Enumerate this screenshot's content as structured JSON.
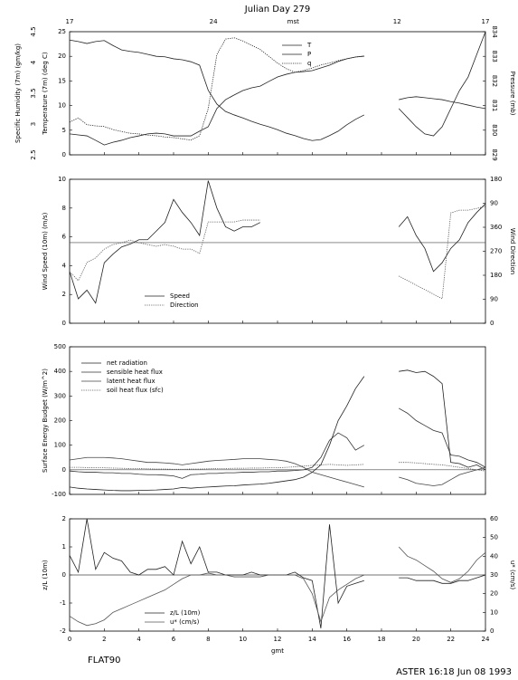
{
  "title": "Julian Day 279",
  "top_axis": {
    "labels": [
      "17",
      "24",
      "mst",
      "12",
      "17"
    ],
    "positions": [
      0,
      8.3,
      12.9,
      18.9,
      24
    ]
  },
  "footer_left": "FLAT90",
  "footer_right": "ASTER 16:18 Jun 08 1993",
  "chart_data": [
    {
      "type": "line",
      "ylabel": "Temperature (7m) (deg C)",
      "ylim": [
        0,
        25
      ],
      "yticks": [
        0,
        5,
        10,
        15,
        20,
        25
      ],
      "y3label": "Specific Humidity (7m) (gm/kg)",
      "y3lim": [
        2.5,
        4.5
      ],
      "y3ticks": [
        2.5,
        3,
        3.5,
        4,
        4.5
      ],
      "y2label": "Pressure (mb)",
      "y2lim": [
        829,
        834
      ],
      "y2ticks": [
        829,
        830,
        831,
        832,
        833,
        834
      ],
      "xlim": [
        0,
        24
      ],
      "xticks": [
        0,
        2,
        4,
        6,
        8,
        10,
        12,
        14,
        16,
        18,
        20,
        22,
        24
      ],
      "x": [
        0,
        0.5,
        1,
        1.5,
        2,
        2.5,
        3,
        3.5,
        4,
        4.5,
        5,
        5.5,
        6,
        6.5,
        7,
        7.5,
        8,
        8.5,
        9,
        9.5,
        10,
        10.5,
        11,
        11.5,
        12,
        12.5,
        13,
        13.5,
        14,
        14.5,
        15,
        15.5,
        16,
        16.5,
        17,
        17.5,
        18,
        18.5,
        19,
        19.5,
        20,
        20.5,
        21,
        21.5,
        22,
        22.5,
        23,
        23.5,
        24
      ],
      "series": [
        {
          "name": "T",
          "color": "#222222",
          "dash": "solid",
          "axis": "y",
          "values": [
            23.3,
            23.0,
            22.6,
            23.0,
            23.2,
            22.2,
            21.3,
            21.0,
            20.8,
            20.4,
            20.0,
            19.9,
            19.5,
            19.3,
            18.9,
            18.2,
            13.1,
            10.3,
            8.8,
            8.1,
            7.5,
            6.8,
            6.2,
            5.7,
            5.1,
            4.4,
            3.9,
            3.3,
            2.9,
            3.1,
            3.9,
            4.8,
            6.1,
            7.2,
            8.1,
            null,
            null,
            null,
            11.2,
            11.6,
            11.8,
            11.6,
            11.4,
            11.2,
            10.8,
            10.5,
            10.1,
            9.7,
            9.4
          ]
        },
        {
          "name": "P",
          "color": "#222222",
          "dash": "solid",
          "axis": "y2",
          "values": [
            829.85,
            829.81,
            829.77,
            829.59,
            829.4,
            829.51,
            829.59,
            829.7,
            829.77,
            829.85,
            829.88,
            829.85,
            829.77,
            829.77,
            829.77,
            829.96,
            830.14,
            830.88,
            831.24,
            831.43,
            831.61,
            831.72,
            831.79,
            831.98,
            832.16,
            832.27,
            832.35,
            832.38,
            832.42,
            832.53,
            832.64,
            832.79,
            832.9,
            832.97,
            833.01,
            null,
            null,
            null,
            830.88,
            830.51,
            830.14,
            829.85,
            829.77,
            830.14,
            830.88,
            831.61,
            832.16,
            833.08,
            834.0
          ]
        },
        {
          "name": "q",
          "color": "#222222",
          "dash": "dotted",
          "axis": "y3",
          "values": [
            3.03,
            3.1,
            2.99,
            2.97,
            2.96,
            2.91,
            2.88,
            2.85,
            2.84,
            2.82,
            2.81,
            2.79,
            2.78,
            2.76,
            2.74,
            2.81,
            3.25,
            4.13,
            4.38,
            4.4,
            4.35,
            4.28,
            4.21,
            4.1,
            3.99,
            3.9,
            3.84,
            3.87,
            3.91,
            3.96,
            3.99,
            4.03,
            4.06,
            4.09,
            4.1,
            null,
            null,
            null,
            null,
            null,
            null,
            null,
            null,
            null,
            null,
            null,
            null,
            null,
            null
          ]
        }
      ]
    },
    {
      "type": "line",
      "ylabel": "Wind Speed (10m) (m/s)",
      "ylim": [
        0,
        10
      ],
      "yticks": [
        0,
        2,
        4,
        6,
        8,
        10
      ],
      "y2label": "Wind Direction",
      "y2lim": [
        0,
        540
      ],
      "y2ticks": [
        0,
        90,
        180,
        270,
        360,
        {
          "value": 450,
          "label": "90"
        },
        {
          "value": 540,
          "label": "180"
        }
      ],
      "hline": 5.6,
      "xlim": [
        0,
        24
      ],
      "xticks": [
        0,
        2,
        4,
        6,
        8,
        10,
        12,
        14,
        16,
        18,
        20,
        22,
        24
      ],
      "x": [
        0,
        0.5,
        1,
        1.5,
        2,
        2.5,
        3,
        3.5,
        4,
        4.5,
        5,
        5.5,
        6,
        6.5,
        7,
        7.5,
        8,
        8.5,
        9,
        9.5,
        10,
        10.5,
        11,
        11.5,
        12,
        12.5,
        13,
        13.5,
        14,
        14.5,
        15,
        15.5,
        16,
        16.5,
        17,
        17.5,
        18,
        18.5,
        19,
        19.5,
        20,
        20.5,
        21,
        21.5,
        22,
        22.5,
        23,
        23.5,
        24
      ],
      "series": [
        {
          "name": "Speed",
          "color": "#222222",
          "dash": "solid",
          "axis": "y",
          "values": [
            3.6,
            1.7,
            2.3,
            1.4,
            4.2,
            4.8,
            5.3,
            5.5,
            5.8,
            5.8,
            6.4,
            7.0,
            8.6,
            7.7,
            7.0,
            6.1,
            9.9,
            8.0,
            6.7,
            6.4,
            6.7,
            6.7,
            7.0,
            null,
            null,
            null,
            null,
            null,
            null,
            null,
            null,
            null,
            null,
            null,
            null,
            null,
            null,
            null,
            6.7,
            7.4,
            6.1,
            5.2,
            3.6,
            4.2,
            5.2,
            5.8,
            7.0,
            7.7,
            8.3
          ]
        },
        {
          "name": "Direction",
          "color": "#555555",
          "dash": "dotted",
          "axis": "y2",
          "values": [
            194,
            160,
            228,
            245,
            278,
            295,
            302,
            312,
            302,
            295,
            289,
            295,
            289,
            278,
            278,
            262,
            380,
            380,
            380,
            380,
            387,
            387,
            387,
            null,
            null,
            null,
            null,
            null,
            null,
            null,
            null,
            null,
            null,
            null,
            null,
            null,
            null,
            null,
            177,
            160,
            143,
            126,
            109,
            92,
            414,
            424,
            424,
            431,
            438
          ]
        }
      ]
    },
    {
      "type": "line",
      "ylabel": "Surface Energy Budget (W/m^2)",
      "ylim": [
        -100,
        500
      ],
      "yticks": [
        -100,
        0,
        100,
        200,
        300,
        400,
        500
      ],
      "hline": 0,
      "xlim": [
        0,
        24
      ],
      "xticks": [
        0,
        2,
        4,
        6,
        8,
        10,
        12,
        14,
        16,
        18,
        20,
        22,
        24
      ],
      "x": [
        0,
        0.5,
        1,
        1.5,
        2,
        2.5,
        3,
        3.5,
        4,
        4.5,
        5,
        5.5,
        6,
        6.5,
        7,
        7.5,
        8,
        8.5,
        9,
        9.5,
        10,
        10.5,
        11,
        11.5,
        12,
        12.5,
        13,
        13.5,
        14,
        14.5,
        15,
        15.5,
        16,
        16.5,
        17,
        17.5,
        18,
        18.5,
        19,
        19.5,
        20,
        20.5,
        21,
        21.5,
        22,
        22.5,
        23,
        23.5,
        24
      ],
      "series": [
        {
          "name": "net radiation",
          "color": "#222222",
          "dash": "solid",
          "axis": "y",
          "values": [
            -70,
            -75,
            -78,
            -80,
            -82,
            -84,
            -85,
            -85,
            -84,
            -83,
            -82,
            -80,
            -78,
            -72,
            -75,
            -72,
            -70,
            -68,
            -66,
            -65,
            -62,
            -60,
            -58,
            -55,
            -50,
            -45,
            -40,
            -30,
            -10,
            20,
            100,
            200,
            260,
            330,
            380,
            null,
            null,
            null,
            400,
            405,
            395,
            400,
            380,
            350,
            30,
            25,
            10,
            20,
            0
          ]
        },
        {
          "name": "sensible heat flux",
          "color": "#333333",
          "dash": "solid",
          "axis": "y",
          "values": [
            -5,
            -8,
            -10,
            -10,
            -12,
            -12,
            -15,
            -15,
            -18,
            -20,
            -20,
            -22,
            -25,
            -35,
            -20,
            -18,
            -15,
            -15,
            -12,
            -12,
            -10,
            -10,
            -8,
            -8,
            -5,
            -5,
            -3,
            0,
            10,
            50,
            120,
            150,
            130,
            80,
            100,
            null,
            null,
            null,
            250,
            230,
            200,
            180,
            160,
            150,
            60,
            55,
            40,
            30,
            10
          ]
        },
        {
          "name": "latent heat flux",
          "color": "#444444",
          "dash": "solid",
          "axis": "y",
          "values": [
            40,
            45,
            50,
            50,
            50,
            48,
            45,
            40,
            35,
            30,
            30,
            28,
            25,
            20,
            25,
            30,
            35,
            38,
            40,
            42,
            45,
            45,
            45,
            42,
            40,
            35,
            25,
            10,
            -10,
            -20,
            -30,
            -40,
            -50,
            -60,
            -70,
            null,
            null,
            null,
            -30,
            -40,
            -55,
            -60,
            -65,
            -60,
            -40,
            -20,
            -10,
            0,
            10
          ]
        },
        {
          "name": "soil heat flux (sfc)",
          "color": "#555555",
          "dash": "dotted",
          "axis": "y",
          "values": [
            10,
            10,
            9,
            8,
            8,
            7,
            6,
            5,
            5,
            4,
            3,
            3,
            2,
            2,
            3,
            3,
            4,
            5,
            5,
            6,
            6,
            7,
            7,
            8,
            8,
            10,
            12,
            15,
            18,
            20,
            22,
            20,
            18,
            20,
            22,
            null,
            null,
            null,
            30,
            30,
            28,
            25,
            22,
            20,
            15,
            10,
            5,
            0,
            -5
          ]
        }
      ]
    },
    {
      "type": "line",
      "ylabel": "z/L (10m)",
      "ylim": [
        -2,
        2
      ],
      "yticks": [
        -2,
        -1,
        0,
        1,
        2
      ],
      "y2label": "u* (cm/s)",
      "y2lim": [
        0,
        60
      ],
      "y2ticks": [
        0,
        10,
        20,
        30,
        40,
        50,
        60
      ],
      "hline": 0,
      "xlabel": "gmt",
      "xlim": [
        0,
        24
      ],
      "xticks": [
        0,
        2,
        4,
        6,
        8,
        10,
        12,
        14,
        16,
        18,
        20,
        22,
        24
      ],
      "x": [
        0,
        0.5,
        1,
        1.5,
        2,
        2.5,
        3,
        3.5,
        4,
        4.5,
        5,
        5.5,
        6,
        6.5,
        7,
        7.5,
        8,
        8.5,
        9,
        9.5,
        10,
        10.5,
        11,
        11.5,
        12,
        12.5,
        13,
        13.5,
        14,
        14.5,
        15,
        15.5,
        16,
        16.5,
        17,
        17.5,
        18,
        18.5,
        19,
        19.5,
        20,
        20.5,
        21,
        21.5,
        22,
        22.5,
        23,
        23.5,
        24
      ],
      "series": [
        {
          "name": "z/L (10m)",
          "color": "#222222",
          "dash": "solid",
          "axis": "y",
          "values": [
            0.7,
            0.1,
            2.0,
            0.2,
            0.8,
            0.6,
            0.5,
            0.1,
            0.0,
            0.2,
            0.2,
            0.3,
            0.0,
            1.2,
            0.4,
            1.0,
            0.1,
            0.1,
            0.0,
            0.0,
            0.0,
            0.1,
            0.0,
            0.0,
            0.0,
            0.0,
            0.1,
            -0.1,
            -0.2,
            -1.9,
            1.8,
            -1.0,
            -0.4,
            -0.3,
            -0.2,
            null,
            null,
            null,
            -0.1,
            -0.1,
            -0.2,
            -0.2,
            -0.2,
            -0.3,
            -0.3,
            -0.2,
            -0.2,
            -0.1,
            0.0
          ]
        },
        {
          "name": "u* (cm/s)",
          "color": "#555555",
          "dash": "solid",
          "axis": "y2",
          "values": [
            8,
            5,
            3,
            4,
            6,
            10,
            12,
            14,
            16,
            18,
            20,
            22,
            25,
            28,
            30,
            30,
            31,
            30,
            30,
            29,
            29,
            29,
            29,
            30,
            30,
            30,
            30,
            28,
            20,
            5,
            18,
            22,
            25,
            28,
            30,
            null,
            null,
            null,
            45,
            40,
            38,
            35,
            32,
            28,
            26,
            28,
            32,
            38,
            42
          ]
        }
      ]
    }
  ]
}
